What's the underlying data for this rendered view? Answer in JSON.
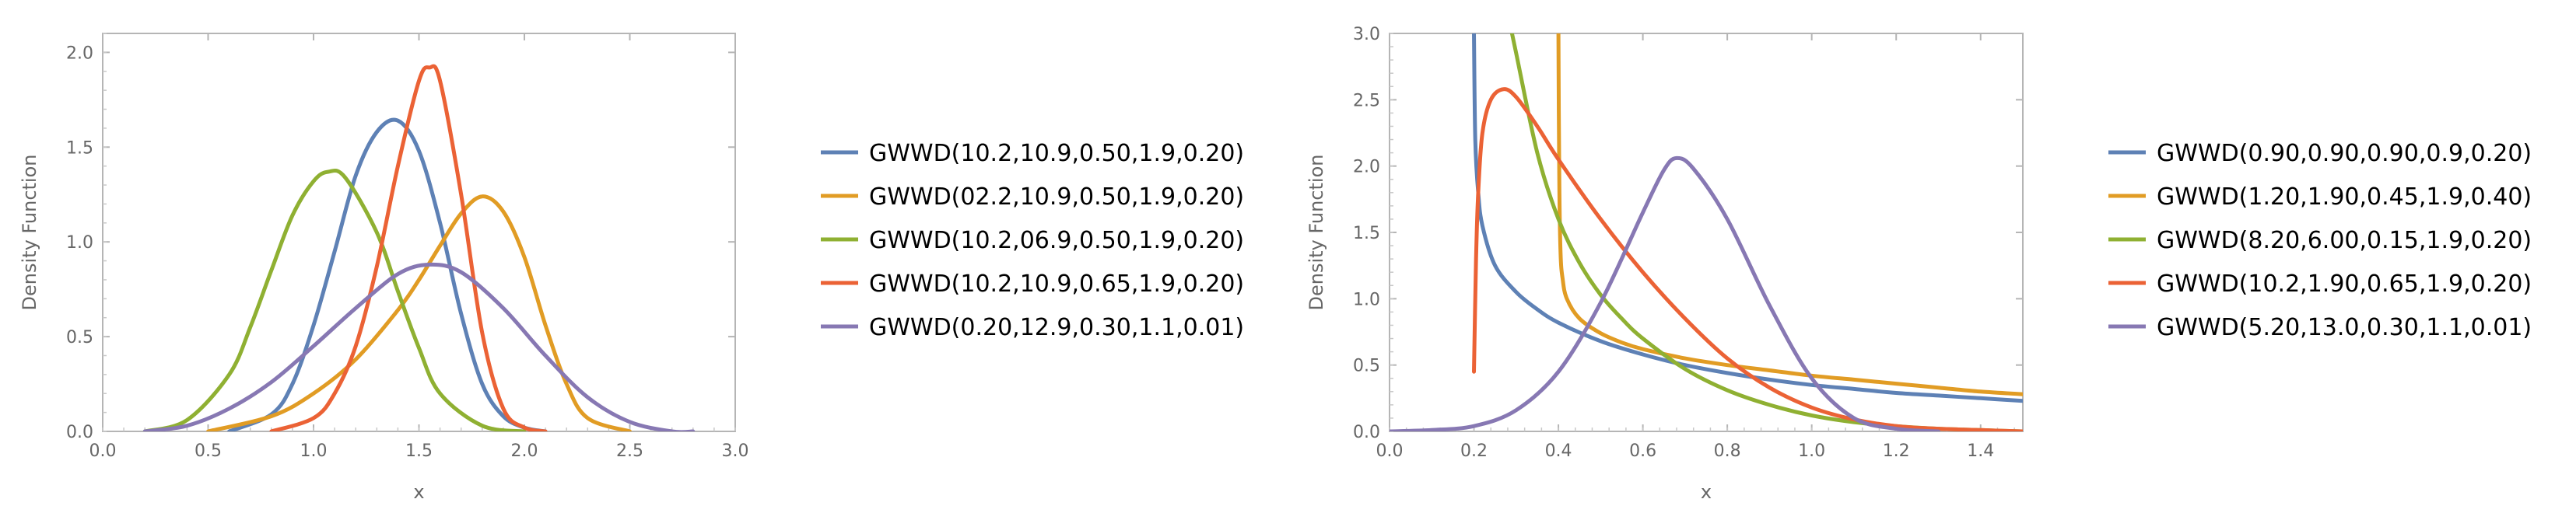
{
  "chart_data": [
    {
      "type": "line",
      "xlabel": "x",
      "ylabel": "Density Function",
      "xlim": [
        0,
        3.0
      ],
      "ylim": [
        0,
        2.1
      ],
      "xticks": [
        "0.0",
        "0.5",
        "1.0",
        "1.5",
        "2.0",
        "2.5",
        "3.0"
      ],
      "yticks": [
        "0.0",
        "0.5",
        "1.0",
        "1.5",
        "2.0"
      ],
      "legend_position": "right",
      "series": [
        {
          "name": "GWWD(10.2,10.9,0.50,1.9,0.20)",
          "color": "#5e81b5",
          "x": [
            0.6,
            0.8,
            0.9,
            1.0,
            1.1,
            1.2,
            1.3,
            1.4,
            1.5,
            1.6,
            1.7,
            1.8,
            1.9,
            2.0,
            2.1
          ],
          "y": [
            0.0,
            0.09,
            0.25,
            0.56,
            0.95,
            1.35,
            1.58,
            1.64,
            1.48,
            1.1,
            0.62,
            0.25,
            0.08,
            0.02,
            0.0
          ]
        },
        {
          "name": "GWWD(02.2,10.9,0.50,1.9,0.20)",
          "color": "#e19c24",
          "x": [
            0.5,
            0.8,
            1.0,
            1.2,
            1.4,
            1.5,
            1.6,
            1.7,
            1.8,
            1.9,
            2.0,
            2.1,
            2.2,
            2.3,
            2.5
          ],
          "y": [
            0.0,
            0.08,
            0.2,
            0.38,
            0.64,
            0.8,
            0.98,
            1.15,
            1.24,
            1.16,
            0.92,
            0.56,
            0.25,
            0.07,
            0.0
          ]
        },
        {
          "name": "GWWD(10.2,06.9,0.50,1.9,0.20)",
          "color": "#8fb032",
          "x": [
            0.2,
            0.4,
            0.6,
            0.7,
            0.8,
            0.9,
            1.0,
            1.07,
            1.15,
            1.3,
            1.4,
            1.5,
            1.6,
            1.8,
            2.0
          ],
          "y": [
            0.0,
            0.06,
            0.3,
            0.55,
            0.85,
            1.14,
            1.32,
            1.37,
            1.34,
            1.05,
            0.74,
            0.44,
            0.2,
            0.03,
            0.0
          ]
        },
        {
          "name": "GWWD(10.2,10.9,0.65,1.9,0.20)",
          "color": "#eb6235",
          "x": [
            0.8,
            1.0,
            1.1,
            1.2,
            1.3,
            1.4,
            1.5,
            1.55,
            1.6,
            1.7,
            1.8,
            1.9,
            2.0,
            2.1
          ],
          "y": [
            0.0,
            0.07,
            0.2,
            0.45,
            0.87,
            1.4,
            1.85,
            1.92,
            1.85,
            1.25,
            0.52,
            0.12,
            0.02,
            0.0
          ]
        },
        {
          "name": "GWWD(0.20,12.9,0.30,1.1,0.01)",
          "color": "#8778b3",
          "x": [
            0.2,
            0.4,
            0.6,
            0.8,
            1.0,
            1.2,
            1.4,
            1.55,
            1.7,
            1.9,
            2.1,
            2.3,
            2.5,
            2.7,
            2.8
          ],
          "y": [
            0.0,
            0.03,
            0.12,
            0.26,
            0.45,
            0.65,
            0.83,
            0.88,
            0.84,
            0.65,
            0.4,
            0.18,
            0.05,
            0.0,
            0.0
          ]
        }
      ]
    },
    {
      "type": "line",
      "xlabel": "x",
      "ylabel": "Density Function",
      "xlim": [
        0,
        1.5
      ],
      "ylim": [
        0,
        3.0
      ],
      "xticks": [
        "0.0",
        "0.2",
        "0.4",
        "0.6",
        "0.8",
        "1.0",
        "1.2",
        "1.4"
      ],
      "yticks": [
        "0.0",
        "0.5",
        "1.0",
        "1.5",
        "2.0",
        "2.5",
        "3.0"
      ],
      "legend_position": "right",
      "series": [
        {
          "name": "GWWD(0.90,0.90,0.90,0.9,0.20)",
          "color": "#5e81b5",
          "x": [
            0.2,
            0.203,
            0.21,
            0.22,
            0.25,
            0.3,
            0.35,
            0.4,
            0.5,
            0.6,
            0.7,
            0.8,
            0.9,
            1.0,
            1.1,
            1.2,
            1.3,
            1.4,
            1.5
          ],
          "y": [
            3.0,
            2.2,
            1.8,
            1.55,
            1.25,
            1.05,
            0.92,
            0.82,
            0.68,
            0.58,
            0.5,
            0.44,
            0.39,
            0.35,
            0.32,
            0.29,
            0.27,
            0.25,
            0.23
          ]
        },
        {
          "name": "GWWD(1.20,1.90,0.45,1.9,0.40)",
          "color": "#e19c24",
          "x": [
            0.4,
            0.402,
            0.405,
            0.41,
            0.42,
            0.45,
            0.5,
            0.55,
            0.6,
            0.7,
            0.8,
            0.9,
            1.0,
            1.1,
            1.2,
            1.3,
            1.4,
            1.5
          ],
          "y": [
            3.0,
            1.9,
            1.35,
            1.15,
            1.0,
            0.85,
            0.74,
            0.67,
            0.62,
            0.55,
            0.5,
            0.46,
            0.42,
            0.39,
            0.36,
            0.33,
            0.3,
            0.28
          ]
        },
        {
          "name": "GWWD(8.20,6.00,0.15,1.9,0.20)",
          "color": "#8fb032",
          "x": [
            0.29,
            0.3,
            0.35,
            0.4,
            0.45,
            0.5,
            0.55,
            0.6,
            0.7,
            0.8,
            0.9,
            1.0,
            1.1,
            1.2,
            1.3,
            1.4,
            1.5
          ],
          "y": [
            3.0,
            2.85,
            2.1,
            1.6,
            1.27,
            1.03,
            0.85,
            0.7,
            0.47,
            0.31,
            0.2,
            0.12,
            0.07,
            0.04,
            0.02,
            0.01,
            0.0
          ]
        },
        {
          "name": "GWWD(10.2,1.90,0.65,1.9,0.20)",
          "color": "#eb6235",
          "x": [
            0.2,
            0.205,
            0.21,
            0.22,
            0.24,
            0.27,
            0.3,
            0.35,
            0.4,
            0.5,
            0.6,
            0.7,
            0.8,
            0.9,
            1.0,
            1.1,
            1.2,
            1.3,
            1.4,
            1.5
          ],
          "y": [
            0.45,
            1.3,
            1.8,
            2.25,
            2.5,
            2.58,
            2.52,
            2.3,
            2.05,
            1.6,
            1.2,
            0.85,
            0.55,
            0.33,
            0.18,
            0.09,
            0.04,
            0.02,
            0.01,
            0.0
          ]
        },
        {
          "name": "GWWD(5.20,13.0,0.30,1.1,0.01)",
          "color": "#8778b3",
          "x": [
            0.0,
            0.1,
            0.2,
            0.3,
            0.4,
            0.5,
            0.6,
            0.65,
            0.68,
            0.72,
            0.8,
            0.9,
            1.0,
            1.1,
            1.2,
            1.3
          ],
          "y": [
            0.0,
            0.01,
            0.04,
            0.16,
            0.45,
            0.97,
            1.65,
            1.97,
            2.06,
            1.98,
            1.6,
            0.95,
            0.4,
            0.1,
            0.02,
            0.0
          ]
        }
      ]
    }
  ]
}
